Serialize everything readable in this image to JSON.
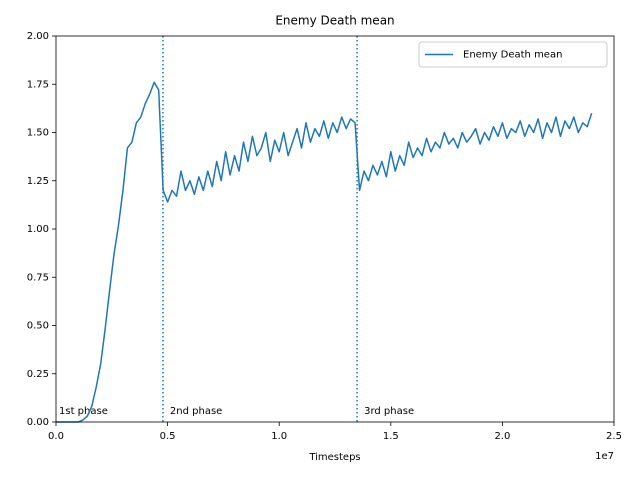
{
  "chart_data": {
    "type": "line",
    "title": "Enemy Death mean",
    "x_label": "Timesteps",
    "x_offset_label": "1e7",
    "x": [
      0,
      0.02,
      0.04,
      0.06,
      0.08,
      0.1,
      0.12,
      0.14,
      0.16,
      0.18,
      0.2,
      0.22,
      0.24,
      0.26,
      0.28,
      0.3,
      0.32,
      0.34,
      0.36,
      0.38,
      0.4,
      0.42,
      0.44,
      0.46,
      0.48,
      0.5,
      0.52,
      0.54,
      0.56,
      0.58,
      0.6,
      0.62,
      0.64,
      0.66,
      0.68,
      0.7,
      0.72,
      0.74,
      0.76,
      0.78,
      0.8,
      0.82,
      0.84,
      0.86,
      0.88,
      0.9,
      0.92,
      0.94,
      0.96,
      0.98,
      1.0,
      1.02,
      1.04,
      1.06,
      1.08,
      1.1,
      1.12,
      1.14,
      1.16,
      1.18,
      1.2,
      1.22,
      1.24,
      1.26,
      1.28,
      1.3,
      1.32,
      1.34,
      1.36,
      1.38,
      1.4,
      1.42,
      1.44,
      1.46,
      1.48,
      1.5,
      1.52,
      1.54,
      1.56,
      1.58,
      1.6,
      1.62,
      1.64,
      1.66,
      1.68,
      1.7,
      1.72,
      1.74,
      1.76,
      1.78,
      1.8,
      1.82,
      1.84,
      1.86,
      1.88,
      1.9,
      1.92,
      1.94,
      1.96,
      1.98,
      2.0,
      2.02,
      2.04,
      2.06,
      2.08,
      2.1,
      2.12,
      2.14,
      2.16,
      2.18,
      2.2,
      2.22,
      2.24,
      2.26,
      2.28,
      2.3,
      2.32,
      2.34,
      2.36,
      2.38,
      2.4
    ],
    "series": [
      {
        "name": "Enemy Death mean",
        "color": "#1f77b4",
        "values": [
          0,
          0,
          0,
          0,
          0,
          0,
          0.01,
          0.03,
          0.08,
          0.18,
          0.3,
          0.48,
          0.68,
          0.87,
          1.02,
          1.2,
          1.42,
          1.45,
          1.55,
          1.58,
          1.65,
          1.7,
          1.76,
          1.72,
          1.2,
          1.14,
          1.2,
          1.17,
          1.3,
          1.2,
          1.25,
          1.18,
          1.27,
          1.2,
          1.3,
          1.22,
          1.35,
          1.25,
          1.4,
          1.28,
          1.38,
          1.3,
          1.45,
          1.35,
          1.48,
          1.38,
          1.42,
          1.5,
          1.35,
          1.46,
          1.4,
          1.5,
          1.38,
          1.45,
          1.52,
          1.42,
          1.55,
          1.45,
          1.52,
          1.48,
          1.56,
          1.47,
          1.55,
          1.5,
          1.58,
          1.52,
          1.57,
          1.55,
          1.2,
          1.3,
          1.25,
          1.33,
          1.28,
          1.35,
          1.27,
          1.4,
          1.3,
          1.38,
          1.33,
          1.45,
          1.37,
          1.42,
          1.38,
          1.47,
          1.4,
          1.45,
          1.42,
          1.5,
          1.44,
          1.47,
          1.42,
          1.5,
          1.45,
          1.48,
          1.52,
          1.44,
          1.5,
          1.46,
          1.53,
          1.48,
          1.55,
          1.47,
          1.52,
          1.5,
          1.56,
          1.48,
          1.54,
          1.5,
          1.57,
          1.47,
          1.55,
          1.5,
          1.58,
          1.48,
          1.56,
          1.52,
          1.58,
          1.5,
          1.55,
          1.53,
          1.6
        ]
      }
    ],
    "xlim": [
      0,
      2.5
    ],
    "ylim": [
      0,
      2
    ],
    "xticks": [
      {
        "value": 0,
        "label": "0.0"
      },
      0.5,
      {
        "value": 1,
        "label": "1.0"
      },
      1.5,
      {
        "value": 2,
        "label": "2.0"
      },
      2.5
    ],
    "yticks": [
      {
        "value": 0,
        "label": "0.00"
      },
      0.25,
      {
        "value": 0.5,
        "label": "0.50"
      },
      0.75,
      {
        "value": 1,
        "label": "1.00"
      },
      1.25,
      {
        "value": 1.5,
        "label": "1.50"
      },
      1.75,
      {
        "value": 2,
        "label": "2.00"
      }
    ],
    "legend": "upper right",
    "phases": [
      {
        "label": "1st phase",
        "start": 0
      },
      {
        "label": "2nd phase",
        "start": 0.479
      },
      {
        "label": "3rd phase",
        "start": 1.349
      }
    ]
  }
}
